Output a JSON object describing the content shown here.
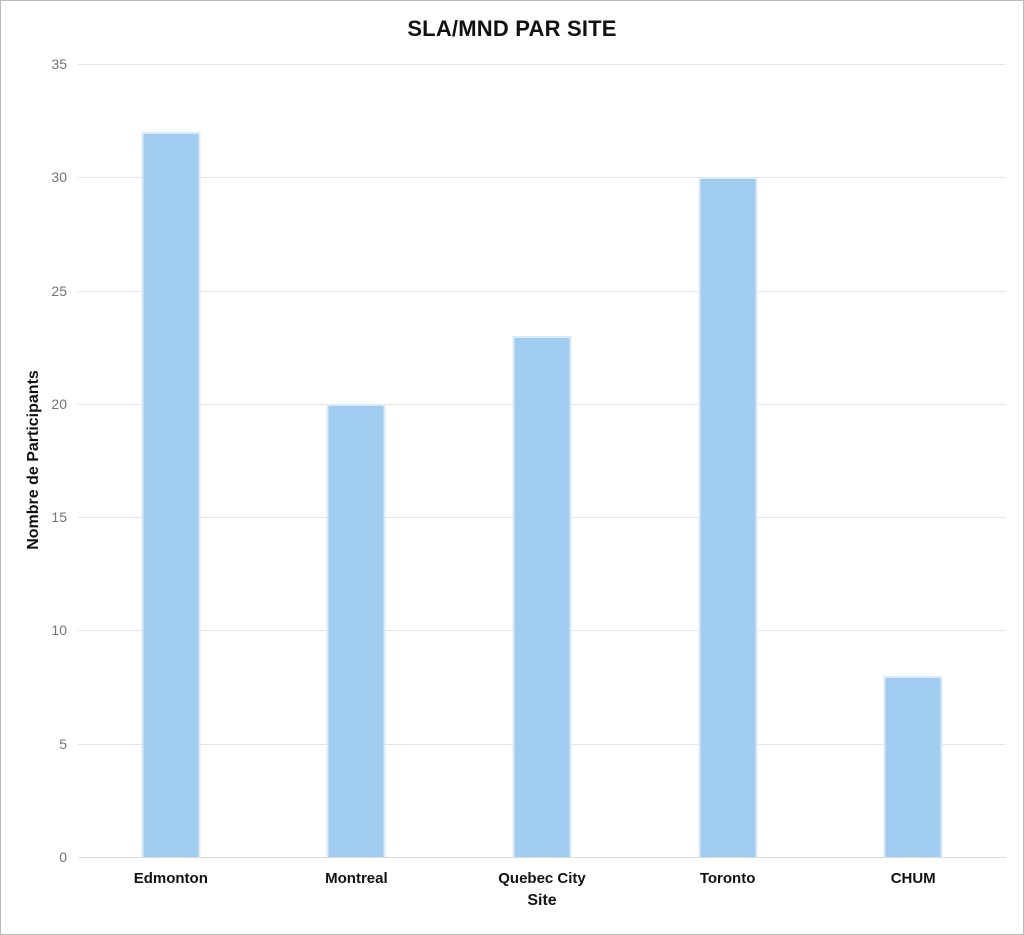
{
  "chart_data": {
    "type": "bar",
    "title": "SLA/MND PAR SITE",
    "categories": [
      "Edmonton",
      "Montreal",
      "Quebec City",
      "Toronto",
      "CHUM"
    ],
    "values": [
      32,
      20,
      23,
      30,
      8
    ],
    "xlabel": "Site",
    "ylabel": "Nombre de Participants",
    "ylim": [
      0,
      35
    ],
    "yticks": [
      0,
      5,
      10,
      15,
      20,
      25,
      30,
      35
    ],
    "grid": true,
    "legend": "none",
    "colors": {
      "bar_fill": "#A0CCEF",
      "bar_edge": "#DCEAF8",
      "gridline": "#E4E4E4",
      "tick_label": "#737373",
      "text": "#111111",
      "background": "#FFFFFF",
      "frame_border": "#B9B9B9"
    }
  }
}
